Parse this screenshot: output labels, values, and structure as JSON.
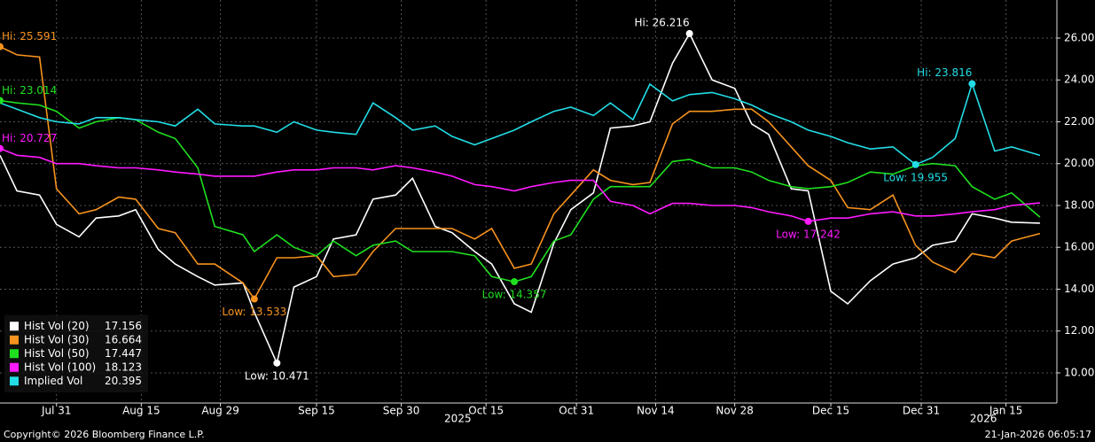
{
  "chart_data": {
    "type": "line",
    "xlim": [
      "2025-07-21",
      "2026-01-24"
    ],
    "ylim": [
      8.56,
      27.82
    ],
    "grid": true,
    "legend": "lower left",
    "xticks": [
      {
        "value": "2025-07-31",
        "label": "Jul 31"
      },
      {
        "value": "2025-08-15",
        "label": "Aug 15"
      },
      {
        "value": "2025-08-29",
        "label": "Aug 29"
      },
      {
        "value": "2025-09-15",
        "label": "Sep 15"
      },
      {
        "value": "2025-09-30",
        "label": "Sep 30"
      },
      {
        "value": "2025-10-15",
        "label": "Oct 15"
      },
      {
        "value": "2025-10-31",
        "label": "Oct 31"
      },
      {
        "value": "2025-11-14",
        "label": "Nov 14"
      },
      {
        "value": "2025-11-28",
        "label": "Nov 28"
      },
      {
        "value": "2025-12-15",
        "label": "Dec 15"
      },
      {
        "value": "2025-12-31",
        "label": "Dec 31"
      },
      {
        "value": "2026-01-15",
        "label": "Jan 15"
      }
    ],
    "xyears": [
      {
        "value": "2025-10-10",
        "label": "2025"
      },
      {
        "value": "2026-01-11",
        "label": "2026"
      }
    ],
    "yticks": [
      {
        "value": 10,
        "label": "10.00"
      },
      {
        "value": 12,
        "label": "12.00"
      },
      {
        "value": 14,
        "label": "14.00"
      },
      {
        "value": 16,
        "label": "16.00"
      },
      {
        "value": 18,
        "label": "18.00"
      },
      {
        "value": 20,
        "label": "20.00"
      },
      {
        "value": 22,
        "label": "22.00"
      },
      {
        "value": 24,
        "label": "24.00"
      },
      {
        "value": 26,
        "label": "26.00"
      }
    ],
    "x": [
      "2025-07-21",
      "2025-07-24",
      "2025-07-28",
      "2025-07-31",
      "2025-08-04",
      "2025-08-07",
      "2025-08-11",
      "2025-08-14",
      "2025-08-18",
      "2025-08-21",
      "2025-08-25",
      "2025-08-28",
      "2025-09-02",
      "2025-09-04",
      "2025-09-08",
      "2025-09-11",
      "2025-09-15",
      "2025-09-18",
      "2025-09-22",
      "2025-09-25",
      "2025-09-29",
      "2025-10-02",
      "2025-10-06",
      "2025-10-09",
      "2025-10-13",
      "2025-10-16",
      "2025-10-20",
      "2025-10-23",
      "2025-10-27",
      "2025-10-30",
      "2025-11-03",
      "2025-11-06",
      "2025-11-10",
      "2025-11-13",
      "2025-11-17",
      "2025-11-20",
      "2025-11-24",
      "2025-11-28",
      "2025-12-01",
      "2025-12-04",
      "2025-12-08",
      "2025-12-11",
      "2025-12-15",
      "2025-12-18",
      "2025-12-22",
      "2025-12-26",
      "2025-12-30",
      "2026-01-02",
      "2026-01-06",
      "2026-01-09",
      "2026-01-13",
      "2026-01-16",
      "2026-01-21"
    ],
    "series": [
      {
        "name": "Hist Vol (20)",
        "color": "#ffffff",
        "values": [
          20.4,
          18.7,
          18.5,
          17.1,
          16.5,
          17.4,
          17.5,
          17.8,
          15.9,
          15.2,
          14.6,
          14.2,
          14.3,
          12.9,
          10.471,
          14.1,
          14.6,
          16.4,
          16.6,
          18.3,
          18.5,
          19.3,
          17.0,
          16.7,
          15.8,
          15.2,
          13.3,
          12.9,
          16.2,
          17.8,
          18.6,
          21.7,
          21.8,
          22.0,
          24.8,
          26.216,
          24.0,
          23.6,
          21.9,
          21.4,
          18.8,
          18.7,
          13.9,
          13.3,
          14.4,
          15.2,
          15.5,
          16.1,
          16.3,
          17.6,
          17.4,
          17.2,
          17.156
        ]
      },
      {
        "name": "Hist Vol (30)",
        "color": "#f7931e",
        "values": [
          25.591,
          25.2,
          25.1,
          18.8,
          17.6,
          17.8,
          18.4,
          18.3,
          16.9,
          16.7,
          15.2,
          15.2,
          14.3,
          13.533,
          15.5,
          15.5,
          15.6,
          14.6,
          14.7,
          15.8,
          16.9,
          16.9,
          16.9,
          16.9,
          16.4,
          16.9,
          15.0,
          15.2,
          17.6,
          18.5,
          19.7,
          19.2,
          19.0,
          19.1,
          21.9,
          22.5,
          22.5,
          22.6,
          22.6,
          22.0,
          20.8,
          19.9,
          19.2,
          17.9,
          17.8,
          18.5,
          16.1,
          15.3,
          14.8,
          15.7,
          15.5,
          16.3,
          16.664
        ]
      },
      {
        "name": "Hist Vol (50)",
        "color": "#1fe01f",
        "values": [
          23.014,
          22.9,
          22.8,
          22.5,
          21.7,
          22.0,
          22.2,
          22.1,
          21.5,
          21.2,
          19.8,
          17.0,
          16.6,
          15.8,
          16.6,
          16.0,
          15.6,
          16.3,
          15.6,
          16.1,
          16.3,
          15.8,
          15.8,
          15.8,
          15.6,
          14.6,
          14.357,
          14.6,
          16.3,
          16.6,
          18.3,
          18.9,
          18.9,
          18.9,
          20.1,
          20.2,
          19.8,
          19.8,
          19.6,
          19.2,
          18.9,
          18.8,
          18.9,
          19.1,
          19.6,
          19.5,
          19.9,
          20.0,
          19.9,
          18.9,
          18.3,
          18.6,
          17.447
        ]
      },
      {
        "name": "Hist Vol (100)",
        "color": "#ff1aff",
        "values": [
          20.727,
          20.4,
          20.3,
          20.0,
          20.0,
          19.9,
          19.8,
          19.8,
          19.7,
          19.6,
          19.5,
          19.4,
          19.4,
          19.4,
          19.6,
          19.7,
          19.7,
          19.8,
          19.8,
          19.7,
          19.9,
          19.8,
          19.6,
          19.4,
          19.0,
          18.9,
          18.7,
          18.9,
          19.1,
          19.2,
          19.2,
          18.2,
          18.0,
          17.6,
          18.1,
          18.1,
          18.0,
          18.0,
          17.9,
          17.7,
          17.5,
          17.242,
          17.4,
          17.4,
          17.6,
          17.7,
          17.5,
          17.5,
          17.6,
          17.7,
          17.8,
          18.0,
          18.123
        ]
      },
      {
        "name": "Implied Vol",
        "color": "#22dde6",
        "values": [
          22.9,
          22.6,
          22.2,
          22.0,
          21.9,
          22.2,
          22.2,
          22.1,
          22.0,
          21.8,
          22.6,
          21.9,
          21.8,
          21.8,
          21.5,
          22.0,
          21.6,
          21.5,
          21.4,
          22.9,
          22.2,
          21.6,
          21.8,
          21.3,
          20.9,
          21.2,
          21.6,
          22.0,
          22.5,
          22.7,
          22.3,
          22.9,
          22.1,
          23.8,
          23.0,
          23.3,
          23.4,
          23.1,
          22.8,
          22.4,
          22.0,
          21.6,
          21.3,
          21.0,
          20.7,
          20.8,
          19.955,
          20.3,
          21.2,
          23.816,
          20.6,
          20.8,
          20.395
        ]
      }
    ],
    "annotations": [
      {
        "x": "2025-11-20",
        "y": 26.216,
        "label": "Hi: 26.216",
        "color": "#ffffff"
      },
      {
        "x": "2025-09-08",
        "y": 10.471,
        "label": "Low: 10.471",
        "color": "#ffffff"
      },
      {
        "x": "2025-07-21",
        "y": 25.591,
        "label": "Hi: 25.591",
        "color": "#f7931e"
      },
      {
        "x": "2025-09-04",
        "y": 13.533,
        "label": "Low: 13.533",
        "color": "#f7931e"
      },
      {
        "x": "2025-07-21",
        "y": 23.014,
        "label": "Hi: 23.014",
        "color": "#1fe01f"
      },
      {
        "x": "2025-10-20",
        "y": 14.357,
        "label": "Low: 14.357",
        "color": "#1fe01f"
      },
      {
        "x": "2025-07-21",
        "y": 20.727,
        "label": "Hi: 20.727",
        "color": "#ff1aff"
      },
      {
        "x": "2025-12-11",
        "y": 17.242,
        "label": "Low: 17.242",
        "color": "#ff1aff"
      },
      {
        "x": "2026-01-09",
        "y": 23.816,
        "label": "Hi: 23.816",
        "color": "#22dde6"
      },
      {
        "x": "2025-12-30",
        "y": 19.955,
        "label": "Low: 19.955",
        "color": "#22dde6"
      }
    ]
  },
  "footer": {
    "copyright": "Copyright© 2026 Bloomberg Finance L.P.",
    "timestamp": "21-Jan-2026 06:05:17"
  }
}
